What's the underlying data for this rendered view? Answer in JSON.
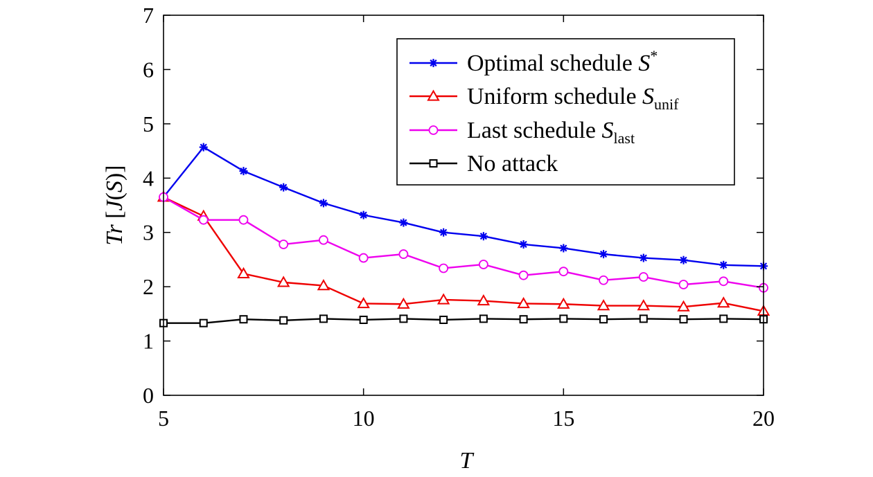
{
  "chart_data": {
    "type": "line",
    "x": [
      5,
      6,
      7,
      8,
      9,
      10,
      11,
      12,
      13,
      14,
      15,
      16,
      17,
      18,
      19,
      20
    ],
    "xlabel": "T",
    "ylabel": "Tr [J(S)]",
    "ylabel_parts": {
      "italic1": "Tr",
      "plain1": " [",
      "italic2": "J",
      "plain2": "(",
      "italic3": "S",
      "plain3": ")]"
    },
    "xlim": [
      5,
      20
    ],
    "ylim": [
      0,
      7
    ],
    "xticks": [
      "5",
      "10",
      "15",
      "20"
    ],
    "yticks": [
      "0",
      "1",
      "2",
      "3",
      "4",
      "5",
      "6",
      "7"
    ],
    "legend_position": "top-right",
    "grid": false,
    "series": [
      {
        "name": "Optimal schedule S*",
        "label_text": "Optimal schedule ",
        "label_symbol": "S",
        "label_sup": "*",
        "label_sub": "",
        "color": "#0000ee",
        "marker": "asterisk",
        "values": [
          3.65,
          4.57,
          4.13,
          3.83,
          3.54,
          3.32,
          3.18,
          3.0,
          2.93,
          2.78,
          2.71,
          2.6,
          2.53,
          2.49,
          2.4,
          2.38
        ]
      },
      {
        "name": "Uniform schedule S_unif",
        "label_text": "Uniform schedule ",
        "label_symbol": "S",
        "label_sup": "",
        "label_sub": "unif",
        "color": "#ee0000",
        "marker": "triangle",
        "values": [
          3.65,
          3.3,
          2.24,
          2.08,
          2.02,
          1.69,
          1.68,
          1.76,
          1.74,
          1.69,
          1.68,
          1.65,
          1.65,
          1.63,
          1.7,
          1.55
        ]
      },
      {
        "name": "Last schedule S_last",
        "label_text": "Last schedule ",
        "label_symbol": "S",
        "label_sup": "",
        "label_sub": "last",
        "color": "#ee00ee",
        "marker": "circle",
        "values": [
          3.65,
          3.23,
          3.23,
          2.78,
          2.86,
          2.53,
          2.6,
          2.34,
          2.41,
          2.21,
          2.28,
          2.12,
          2.18,
          2.04,
          2.1,
          1.98
        ]
      },
      {
        "name": "No attack",
        "label_text": "No attack",
        "label_symbol": "",
        "label_sup": "",
        "label_sub": "",
        "color": "#000000",
        "marker": "square",
        "values": [
          1.33,
          1.33,
          1.4,
          1.38,
          1.41,
          1.39,
          1.41,
          1.39,
          1.41,
          1.4,
          1.41,
          1.4,
          1.41,
          1.4,
          1.41,
          1.4
        ]
      }
    ]
  }
}
